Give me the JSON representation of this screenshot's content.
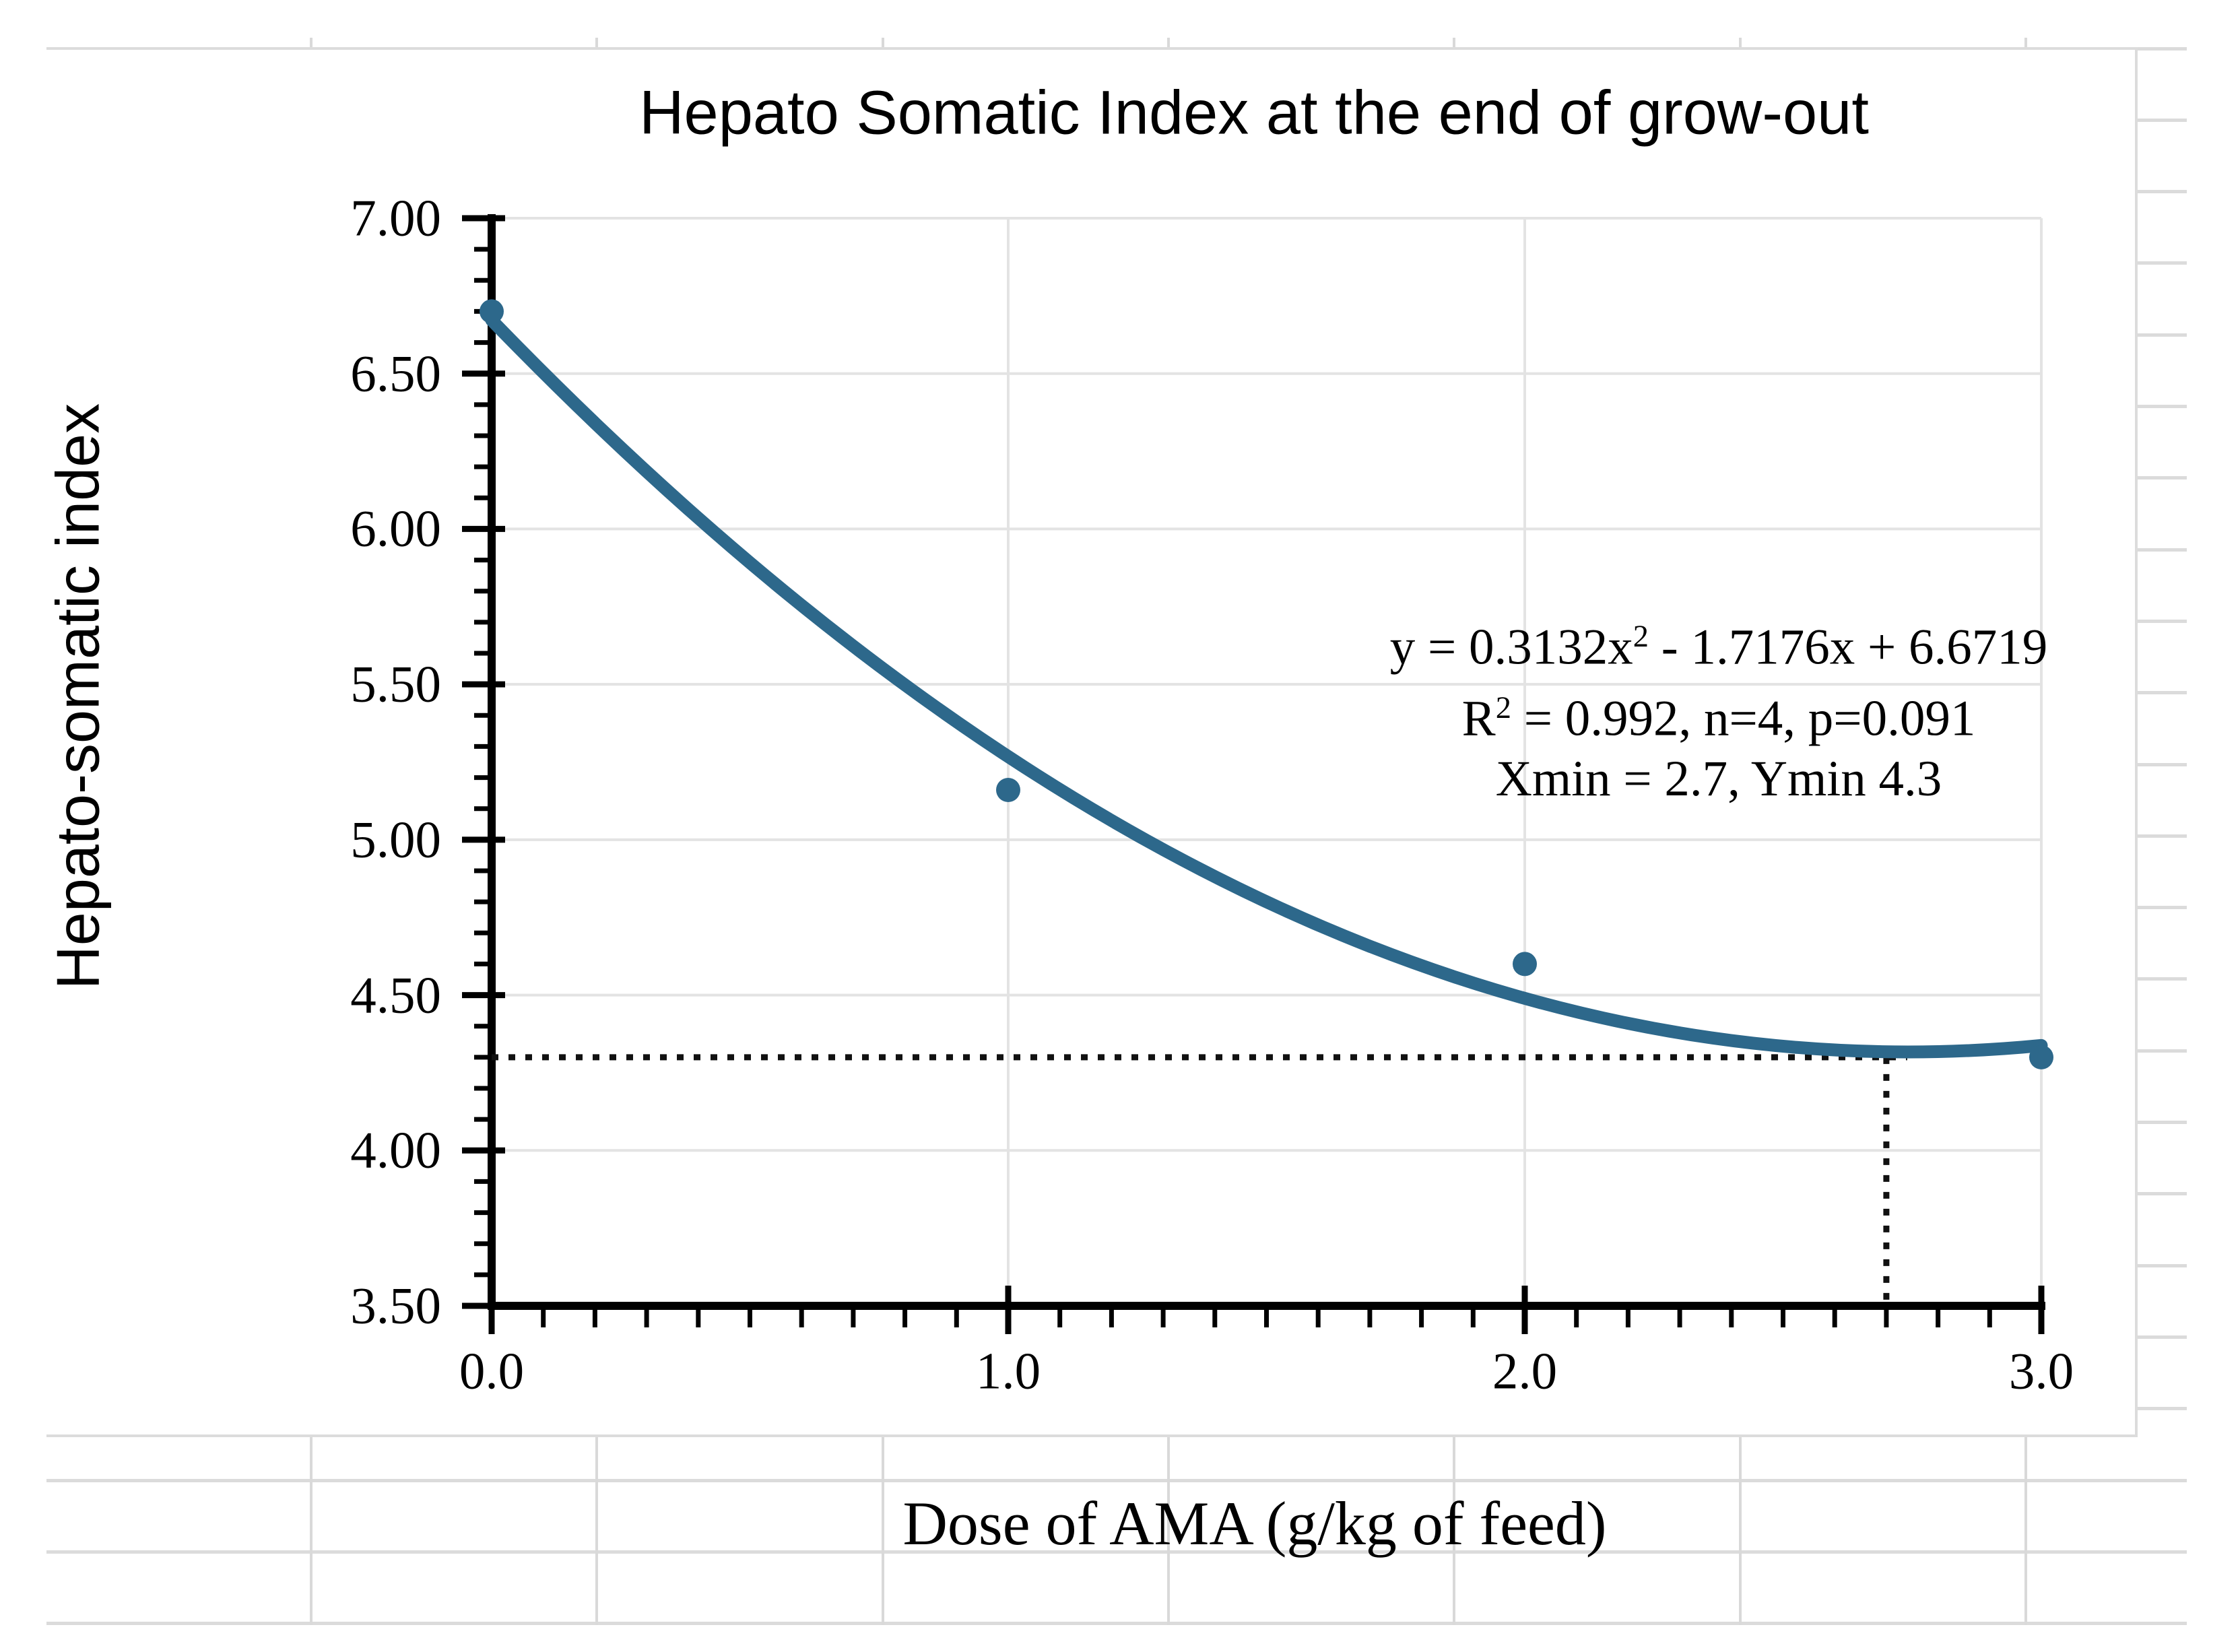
{
  "chart": {
    "title": "Hepato Somatic Index at the end of grow-out",
    "y_axis_title": "Hepato-somatic index",
    "x_axis_title": "Dose of AMA (g/kg of feed)",
    "annotation": {
      "eq_pre": "y = 0.3132x",
      "eq_sup": "2",
      "eq_post": " - 1.7176x + 6.6719",
      "r2_pre": "R",
      "r2_sup": "2",
      "r2_post": " = 0.992, n=4, p=0.091",
      "min_line": "Xmin = 2.7, Ymin 4.3"
    }
  },
  "chart_data": {
    "type": "scatter",
    "title": "Hepato Somatic Index at the end of grow-out",
    "xlabel": "Dose of AMA (g/kg of feed)",
    "ylabel": "Hepato-somatic index",
    "x": [
      0.0,
      1.0,
      2.0,
      3.0
    ],
    "y": [
      6.7,
      5.16,
      4.6,
      4.3
    ],
    "xlim": [
      0.0,
      3.0
    ],
    "ylim": [
      3.5,
      7.0
    ],
    "x_tick_labels": [
      "0.0",
      "1.0",
      "2.0",
      "3.0"
    ],
    "y_tick_labels": [
      "7.00",
      "6.50",
      "6.00",
      "5.50",
      "5.00",
      "4.50",
      "4.00",
      "3.50"
    ],
    "x_major_step": 1.0,
    "y_major_step": 0.5,
    "minor_tick_step": 0.1,
    "grid": true,
    "legend": false,
    "trendline": {
      "form": "quadratic",
      "a": 0.3132,
      "b": -1.7176,
      "c": 6.6719,
      "r2": 0.992,
      "n": 4,
      "p": 0.091
    },
    "minimum": {
      "x": 2.7,
      "y": 4.3
    },
    "series_color": "#2D688B",
    "gridline_color": "#E3E3E3",
    "dotted_line_color": "#111111"
  }
}
